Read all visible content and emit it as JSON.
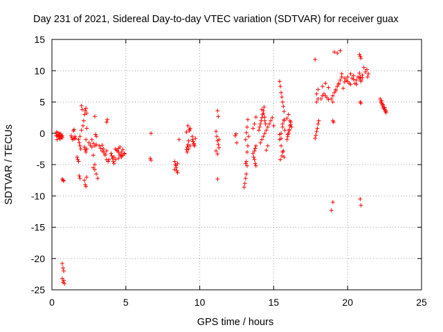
{
  "chart_data": {
    "type": "scatter",
    "title": "Day 231 of 2021, Sidereal Day-to-day VTEC variation (SDTVAR) for receiver guax",
    "xlabel": "GPS time / hours",
    "ylabel": "SDTVAR / TECUs",
    "xlim": [
      0,
      25
    ],
    "ylim": [
      -25,
      15
    ],
    "xticks": [
      0,
      5,
      10,
      15,
      20,
      25
    ],
    "yticks": [
      -25,
      -20,
      -15,
      -10,
      -5,
      0,
      5,
      10,
      15
    ],
    "grid": true,
    "marker": "+",
    "color": "#ff0000",
    "series": [
      {
        "name": "SDTVAR",
        "x": [
          0.3,
          0.35,
          0.4,
          0.45,
          0.5,
          0.55,
          0.6,
          0.65,
          0.7,
          0.3,
          0.4,
          0.5,
          0.6,
          0.7,
          0.35,
          0.55,
          0.7,
          0.75,
          0.8,
          0.7,
          0.75,
          0.8,
          0.7,
          0.75,
          0.8,
          0.85,
          1.3,
          1.35,
          1.4,
          1.45,
          1.5,
          1.5,
          1.55,
          1.6,
          1.7,
          1.75,
          1.8,
          1.85,
          1.9,
          1.8,
          1.85,
          1.9,
          1.95,
          2.0,
          2.05,
          1.9,
          2.0,
          2.1,
          2.15,
          2.2,
          2.25,
          2.3,
          2.35,
          2.2,
          2.25,
          2.3,
          2.35,
          2.2,
          2.25,
          2.3,
          2.35,
          2.3,
          2.35,
          2.5,
          2.6,
          2.7,
          2.8,
          2.9,
          2.8,
          2.9,
          3.0,
          3.1,
          2.7,
          2.8,
          2.9,
          2.95,
          3.0,
          2.9,
          3.0,
          3.2,
          3.3,
          3.4,
          3.5,
          3.6,
          3.7,
          3.4,
          3.5,
          3.6,
          3.7,
          3.8,
          3.85,
          3.7,
          3.75,
          4.0,
          4.05,
          4.1,
          4.15,
          4.2,
          4.3,
          4.4,
          4.5,
          4.6,
          4.7,
          4.2,
          4.3,
          4.4,
          4.5,
          4.6,
          4.7,
          4.8,
          4.9,
          4.5,
          4.6,
          4.7,
          4.8,
          4.9,
          6.7,
          6.65,
          6.7,
          8.3,
          8.35,
          8.4,
          8.45,
          8.5,
          8.3,
          8.4,
          8.5,
          8.6,
          9.1,
          9.15,
          9.2,
          9.25,
          9.3,
          9.35,
          9.1,
          9.2,
          9.3,
          9.15,
          9.25,
          9.35,
          9.5,
          9.55,
          9.6,
          9.65,
          9.7,
          9.5,
          9.6,
          11.1,
          11.15,
          11.2,
          11.25,
          11.3,
          11.1,
          11.2,
          11.3,
          11.2,
          11.25,
          11.2,
          12.4,
          12.45,
          12.5,
          13.0,
          13.05,
          13.1,
          13.15,
          13.2,
          13.1,
          13.15,
          13.2,
          13.25,
          13.1,
          13.15,
          13.2,
          13.25,
          13.3,
          13.6,
          13.65,
          13.7,
          13.75,
          13.8,
          13.7,
          13.75,
          13.8,
          13.6,
          13.7,
          13.8,
          14.0,
          14.05,
          14.1,
          14.15,
          14.2,
          14.25,
          14.3,
          14.35,
          14.4,
          14.45,
          14.1,
          14.2,
          14.3,
          14.4,
          14.5,
          14.6,
          14.7,
          14.8,
          14.9,
          15.0,
          14.2,
          14.3,
          14.4,
          14.5,
          14.6,
          15.4,
          15.45,
          15.5,
          15.55,
          15.6,
          15.65,
          15.7,
          15.4,
          15.5,
          15.6,
          15.7,
          15.45,
          15.55,
          15.65,
          15.5,
          15.6,
          15.7,
          15.75,
          15.4,
          15.5,
          15.6,
          15.7,
          15.9,
          15.95,
          16.0,
          16.05,
          16.1,
          16.15,
          15.9,
          16.0,
          16.1,
          16.2,
          15.95,
          16.05,
          16.15,
          17.8,
          17.85,
          17.9,
          17.95,
          18.0,
          18.05,
          17.9,
          18.0,
          17.9,
          18.0,
          18.2,
          18.3,
          18.4,
          18.5,
          18.6,
          18.7,
          18.3,
          18.5,
          18.7,
          18.9,
          19.0,
          19.1,
          19.2,
          19.3,
          19.4,
          19.5,
          19.6,
          19.7,
          19.8,
          19.0,
          19.2,
          19.4,
          19.6,
          19.8,
          19.1,
          19.3,
          19.5,
          19.9,
          20.0,
          20.1,
          20.2,
          20.3,
          20.4,
          20.0,
          20.2,
          20.4,
          20.5,
          20.6,
          20.7,
          20.8,
          20.9,
          21.0,
          20.6,
          20.8,
          21.0,
          21.1,
          21.2,
          21.3,
          21.35,
          21.4,
          20.8,
          20.85,
          20.9,
          20.85,
          20.9,
          20.85,
          20.9,
          18.9,
          19.0,
          17.8,
          19.0,
          19.05,
          20.85,
          20.9,
          22.2,
          22.25,
          22.3,
          22.35,
          22.4,
          22.45,
          22.5,
          22.55,
          22.6,
          22.3,
          22.4,
          22.5,
          22.6
        ],
        "y": [
          -0.3,
          -0.5,
          -0.2,
          -0.6,
          -0.4,
          -0.8,
          -0.3,
          -0.5,
          -0.7,
          0.2,
          0.1,
          0.0,
          -0.1,
          -0.4,
          -1.0,
          -0.9,
          -7.3,
          -7.5,
          -7.6,
          -20.8,
          -21.5,
          -22.0,
          -23.2,
          -23.8,
          -23.5,
          -24.0,
          -0.4,
          -0.7,
          -1.0,
          0.4,
          -0.9,
          0.6,
          -0.5,
          -0.8,
          -3.8,
          -4.2,
          -4.5,
          -6.8,
          -7.2,
          -1.0,
          -1.5,
          -2.0,
          -2.5,
          4.4,
          3.8,
          -0.5,
          0.5,
          1.2,
          2.0,
          3.0,
          3.6,
          4.0,
          3.2,
          -7.5,
          -8.2,
          -8.5,
          -7.0,
          -2.2,
          -2.6,
          -3.0,
          -2.5,
          -1.0,
          0.8,
          -1.5,
          -1.9,
          -2.2,
          -3.5,
          -5.0,
          -5.5,
          -5.8,
          -6.5,
          -7.2,
          -1.0,
          -1.6,
          -2.0,
          -0.2,
          -0.5,
          2.7,
          -1.8,
          -2.0,
          -2.4,
          -2.8,
          -3.0,
          -3.5,
          -4.2,
          -1.9,
          -2.5,
          -3.3,
          -2.8,
          -4.5,
          -4.2,
          1.8,
          2.2,
          -3.2,
          -3.6,
          -4.0,
          -4.5,
          -4.8,
          -2.5,
          -2.8,
          -3.0,
          -3.3,
          -3.6,
          -3.8,
          -4.2,
          -2.7,
          -2.4,
          -2.2,
          -3.0,
          -3.5,
          -3.3,
          -4.0,
          -3.5,
          -3.8,
          -2.6,
          -3.2,
          0.0,
          -4.0,
          -4.3,
          -4.5,
          -5.0,
          -5.5,
          -6.0,
          -6.3,
          -5.8,
          -5.2,
          -4.8,
          -1.0,
          -2.6,
          -2.2,
          -1.8,
          -1.2,
          0.4,
          0.8,
          0.2,
          1.2,
          0.6,
          -3.0,
          -2.5,
          -2.0,
          -1.0,
          -1.3,
          -1.6,
          -2.0,
          -0.8,
          -0.5,
          -1.8,
          0.3,
          -0.5,
          -1.2,
          -1.8,
          -2.3,
          -2.8,
          -3.3,
          -1.0,
          3.6,
          2.7,
          -7.3,
          -0.4,
          -0.1,
          -1.5,
          -8.6,
          -8.0,
          -7.2,
          -6.5,
          -5.2,
          -4.8,
          -4.5,
          -3.0,
          -2.0,
          -1.0,
          0.1,
          1.0,
          2.2,
          -0.5,
          -3.2,
          -3.8,
          -4.2,
          -4.8,
          -5.2,
          -2.8,
          -2.4,
          -2.0,
          0.8,
          1.5,
          2.6,
          0.5,
          1.0,
          1.5,
          2.0,
          2.5,
          3.0,
          3.6,
          4.2,
          2.0,
          1.5,
          -1.5,
          -1.0,
          -0.5,
          0.0,
          0.5,
          1.0,
          1.5,
          2.0,
          2.5,
          1.2,
          3.8,
          3.2,
          2.6,
          -2.7,
          -2.0,
          8.3,
          7.5,
          6.5,
          5.8,
          5.0,
          4.3,
          3.5,
          -1.0,
          -2.0,
          -3.0,
          -3.8,
          -4.2,
          -3.6,
          -2.8,
          0.0,
          1.0,
          2.0,
          0.5,
          -0.2,
          -0.8,
          1.5,
          2.2,
          -1.0,
          -0.5,
          0.0,
          0.6,
          1.2,
          1.8,
          2.4,
          3.0,
          2.0,
          1.0,
          -0.2,
          0.4,
          1.4,
          -0.8,
          -0.3,
          0.3,
          0.8,
          1.5,
          2.0,
          5.0,
          5.5,
          6.3,
          7.0,
          5.5,
          6.0,
          6.3,
          6.0,
          5.7,
          5.4,
          7.5,
          8.0,
          7.3,
          5.5,
          6.0,
          6.5,
          7.0,
          7.5,
          8.0,
          8.5,
          9.0,
          7.2,
          8.8,
          5.0,
          6.8,
          7.8,
          9.5,
          8.2,
          13.0,
          12.8,
          13.2,
          8.5,
          9.0,
          8.0,
          9.5,
          8.8,
          9.2,
          8.3,
          7.8,
          8.6,
          8.0,
          8.5,
          9.0,
          8.8,
          8.3,
          9.3,
          7.8,
          9.6,
          8.9,
          10.5,
          9.8,
          10.2,
          9.0,
          9.5,
          12.6,
          12.3,
          12.0,
          5.0,
          4.8,
          -10.5,
          -11.5,
          -12.3,
          -11.0,
          11.8,
          2.0,
          1.8,
          9.0,
          8.5,
          5.5,
          5.0,
          4.8,
          4.5,
          4.2,
          4.0,
          3.8,
          3.5,
          3.3,
          5.2,
          4.6,
          4.1,
          3.6
        ]
      }
    ]
  }
}
